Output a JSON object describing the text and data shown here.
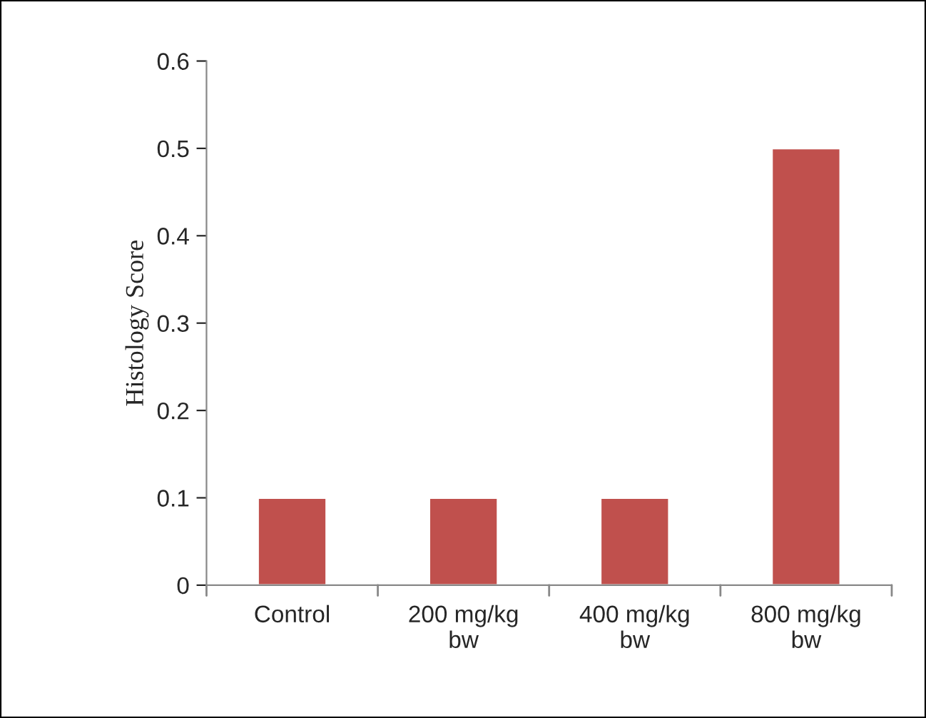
{
  "chart_data": {
    "type": "bar",
    "ylabel": "Histology Score",
    "categories": [
      "Control",
      "200 mg/kg bw",
      "400 mg/kg bw",
      "800 mg/kg bw"
    ],
    "values": [
      0.1,
      0.1,
      0.1,
      0.5
    ],
    "color": "#c0504d",
    "ylim": [
      0,
      0.6
    ],
    "yticks": [
      0,
      0.1,
      0.2,
      0.3,
      0.4,
      0.5,
      0.6
    ],
    "grid": false,
    "legend": false
  }
}
